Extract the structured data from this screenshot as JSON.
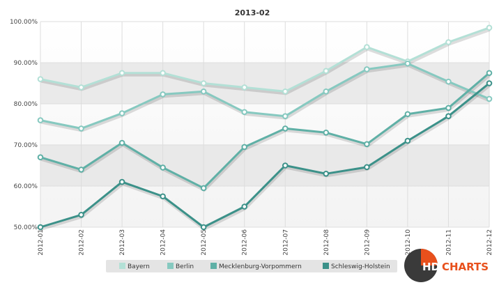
{
  "chart_data": {
    "type": "line",
    "title": "2013-02",
    "xlabel": "",
    "ylabel": "",
    "categories": [
      "2012-01",
      "2012-02",
      "2012-03",
      "2012-04",
      "2012-05",
      "2012-06",
      "2012-07",
      "2012-08",
      "2012-09",
      "2012-10",
      "2012-11",
      "2012-12"
    ],
    "ylim": [
      50,
      100
    ],
    "yticks": [
      50,
      60,
      70,
      80,
      90,
      100
    ],
    "ytick_labels": [
      "50.00%",
      "60.00%",
      "70.00%",
      "80.00%",
      "90.00%",
      "100.00%"
    ],
    "grid": true,
    "legend_position": "bottom-center",
    "series": [
      {
        "name": "Bayern",
        "color": "#b3e0d6",
        "values": [
          86,
          84,
          87.5,
          87.5,
          85,
          84,
          83,
          88,
          93.8,
          90.3,
          95,
          98.5
        ]
      },
      {
        "name": "Berlin",
        "color": "#86c9c0",
        "values": [
          76,
          74,
          77.7,
          82.3,
          83,
          78,
          77,
          83,
          88.4,
          89.8,
          85.4,
          81.2
        ]
      },
      {
        "name": "Mecklenburg-Vorpommern",
        "color": "#5fb0a6",
        "values": [
          67,
          64,
          70.5,
          64.5,
          59.5,
          69.5,
          74,
          73,
          70.2,
          77.5,
          79,
          87.5
        ]
      },
      {
        "name": "Schleswig-Holstein",
        "color": "#3b9189",
        "values": [
          50,
          53,
          61,
          57.5,
          50,
          55,
          65,
          63,
          64.6,
          71,
          77,
          85
        ]
      }
    ]
  },
  "logo": {
    "prefix": "HD",
    "suffix": "CHARTS"
  }
}
